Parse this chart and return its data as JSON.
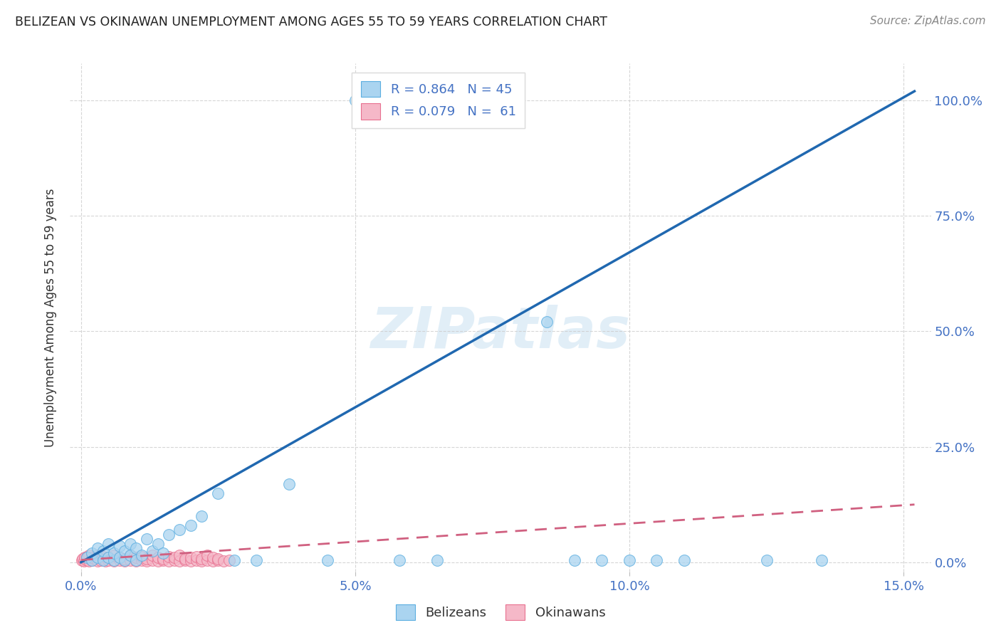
{
  "title": "BELIZEAN VS OKINAWAN UNEMPLOYMENT AMONG AGES 55 TO 59 YEARS CORRELATION CHART",
  "source": "Source: ZipAtlas.com",
  "ylabel": "Unemployment Among Ages 55 to 59 years",
  "xlim": [
    -0.002,
    0.155
  ],
  "ylim": [
    -0.02,
    1.08
  ],
  "xtick_vals": [
    0.0,
    0.05,
    0.1,
    0.15
  ],
  "xticklabels": [
    "0.0%",
    "5.0%",
    "10.0%",
    "15.0%"
  ],
  "ytick_vals": [
    0.0,
    0.25,
    0.5,
    0.75,
    1.0
  ],
  "yticklabels": [
    "0.0%",
    "25.0%",
    "50.0%",
    "75.0%",
    "100.0%"
  ],
  "belizean_fill_color": "#aad4f0",
  "belizean_edge_color": "#5baee0",
  "okinawan_fill_color": "#f5b8c8",
  "okinawan_edge_color": "#e87090",
  "belizean_line_color": "#2068b0",
  "okinawan_line_color": "#d06080",
  "legend_label_1": "R = 0.864   N = 45",
  "legend_label_2": "R = 0.079   N =  61",
  "legend_belizeans": "Belizeans",
  "legend_okinawans": "Okinawans",
  "watermark": "ZIPatlas",
  "background_color": "#ffffff",
  "bel_line_x0": 0.0,
  "bel_line_y0": 0.0,
  "bel_line_x1": 0.152,
  "bel_line_y1": 1.02,
  "oki_line_x0": 0.0,
  "oki_line_y0": 0.005,
  "oki_line_x1": 0.152,
  "oki_line_y1": 0.125,
  "bel_scatter_x": [
    0.001,
    0.002,
    0.002,
    0.003,
    0.003,
    0.004,
    0.004,
    0.005,
    0.005,
    0.006,
    0.006,
    0.007,
    0.007,
    0.008,
    0.008,
    0.009,
    0.009,
    0.01,
    0.01,
    0.011,
    0.012,
    0.013,
    0.014,
    0.015,
    0.016,
    0.018,
    0.02,
    0.022,
    0.025,
    0.028,
    0.032,
    0.038,
    0.045,
    0.05,
    0.055,
    0.058,
    0.065,
    0.085,
    0.09,
    0.095,
    0.1,
    0.105,
    0.11,
    0.125,
    0.135
  ],
  "bel_scatter_y": [
    0.01,
    0.005,
    0.02,
    0.01,
    0.03,
    0.005,
    0.025,
    0.01,
    0.04,
    0.005,
    0.02,
    0.01,
    0.035,
    0.005,
    0.025,
    0.015,
    0.04,
    0.005,
    0.03,
    0.015,
    0.05,
    0.025,
    0.04,
    0.02,
    0.06,
    0.07,
    0.08,
    0.1,
    0.15,
    0.005,
    0.005,
    0.17,
    0.005,
    1.0,
    1.0,
    0.005,
    0.005,
    0.52,
    0.005,
    0.005,
    0.005,
    0.005,
    0.005,
    0.005,
    0.005
  ],
  "oki_scatter_x": [
    0.0002,
    0.0003,
    0.0005,
    0.0007,
    0.001,
    0.001,
    0.0015,
    0.0015,
    0.002,
    0.002,
    0.0025,
    0.003,
    0.003,
    0.0035,
    0.004,
    0.004,
    0.0045,
    0.005,
    0.005,
    0.006,
    0.006,
    0.007,
    0.007,
    0.008,
    0.008,
    0.009,
    0.009,
    0.01,
    0.01,
    0.011,
    0.011,
    0.012,
    0.012,
    0.013,
    0.013,
    0.014,
    0.014,
    0.015,
    0.015,
    0.016,
    0.016,
    0.017,
    0.017,
    0.018,
    0.018,
    0.019,
    0.019,
    0.02,
    0.02,
    0.021,
    0.021,
    0.022,
    0.022,
    0.023,
    0.023,
    0.024,
    0.024,
    0.025,
    0.025,
    0.026,
    0.027
  ],
  "oki_scatter_y": [
    0.005,
    0.008,
    0.003,
    0.01,
    0.005,
    0.012,
    0.003,
    0.015,
    0.005,
    0.01,
    0.008,
    0.003,
    0.015,
    0.005,
    0.008,
    0.012,
    0.003,
    0.005,
    0.01,
    0.003,
    0.015,
    0.005,
    0.01,
    0.003,
    0.008,
    0.005,
    0.015,
    0.003,
    0.01,
    0.005,
    0.012,
    0.003,
    0.008,
    0.005,
    0.015,
    0.003,
    0.01,
    0.005,
    0.008,
    0.003,
    0.012,
    0.005,
    0.01,
    0.003,
    0.015,
    0.005,
    0.008,
    0.003,
    0.01,
    0.005,
    0.012,
    0.003,
    0.008,
    0.005,
    0.015,
    0.003,
    0.01,
    0.005,
    0.008,
    0.003,
    0.005
  ]
}
